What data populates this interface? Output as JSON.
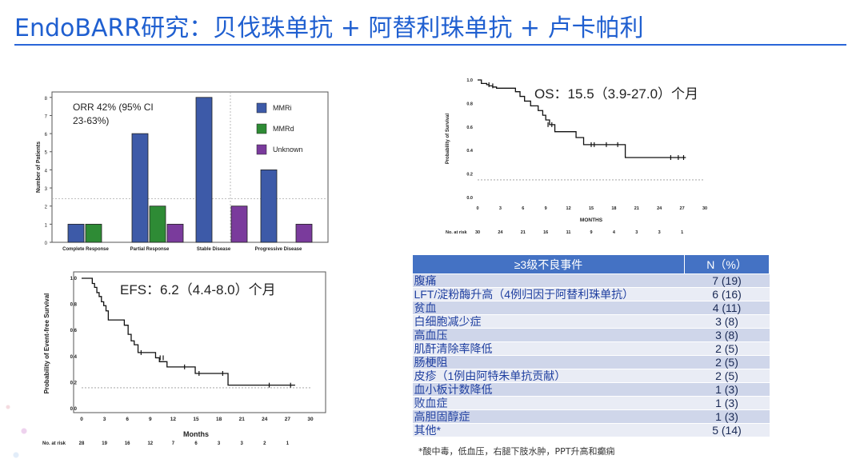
{
  "page": {
    "title": "EndoBARR研究：贝伐珠单抗 + 阿替利珠单抗 + 卢卡帕利",
    "footnote": "*酸中毒，低血压，右腿下肢水肿，PPT升高和癫痫"
  },
  "colors": {
    "title": "#1f5fd0",
    "mmri": "#3d5aa8",
    "mmrd": "#2e8b35",
    "unknown": "#7a3b9c",
    "table_header": "#4472c4"
  },
  "chart_data": [
    {
      "type": "bar",
      "categories": [
        "Complete Response",
        "Partial Response",
        "Stable Disease",
        "Progressive Disease"
      ],
      "series": [
        {
          "name": "MMRi",
          "values": [
            1,
            6,
            8,
            4
          ]
        },
        {
          "name": "MMRd",
          "values": [
            1,
            2,
            0,
            0
          ]
        },
        {
          "name": "Unknown",
          "values": [
            0,
            1,
            2,
            1
          ]
        }
      ],
      "ylabel": "Number of Patients",
      "yticks": [
        0,
        1,
        2,
        3,
        4,
        5,
        6,
        7,
        8
      ],
      "ylim": [
        0,
        8.3
      ],
      "annotation": "ORR 42% (95% CI 23-63%)",
      "annotation_lines": [
        "ORR 42% (95% CI",
        "23-63%)"
      ],
      "legend_position": "top-right",
      "reference_line_y": 2.4
    },
    {
      "type": "line",
      "subtype": "kaplan-meier",
      "annotation": "OS：15.5（3.9-27.0）个月",
      "xlabel": "MONTHS",
      "ylabel": "Probability of Survival",
      "xticks": [
        0,
        3,
        6,
        9,
        12,
        15,
        18,
        21,
        24,
        27,
        30
      ],
      "yticks": [
        "0.0",
        "0.2",
        "0.4",
        "0.6",
        "0.8",
        "1.0"
      ],
      "xlim": [
        0,
        30
      ],
      "ylim": [
        0,
        1
      ],
      "reference_line_y": 0.15,
      "at_risk_label": "No. at risk",
      "at_risk": [
        30,
        24,
        21,
        16,
        11,
        9,
        4,
        3,
        3,
        1
      ],
      "x": [
        0,
        0.5,
        1.2,
        1.5,
        2.0,
        2.5,
        3.5,
        5.0,
        5.6,
        6.2,
        7.0,
        8.0,
        8.6,
        9.0,
        9.5,
        10.2,
        13.0,
        14.0,
        16.0,
        19.5
      ],
      "y": [
        1.0,
        0.97,
        0.96,
        0.95,
        0.94,
        0.93,
        0.93,
        0.9,
        0.86,
        0.82,
        0.78,
        0.74,
        0.7,
        0.66,
        0.62,
        0.56,
        0.51,
        0.45,
        0.45,
        0.34
      ],
      "censored": [
        [
          1.5,
          0.96
        ],
        [
          2.0,
          0.95
        ],
        [
          9.3,
          0.62
        ],
        [
          9.8,
          0.62
        ],
        [
          15.0,
          0.45
        ],
        [
          15.4,
          0.45
        ],
        [
          17.0,
          0.45
        ],
        [
          18.5,
          0.45
        ],
        [
          25.5,
          0.34
        ],
        [
          26.5,
          0.34
        ],
        [
          27.2,
          0.34
        ]
      ],
      "x_end": 27.5
    },
    {
      "type": "line",
      "subtype": "kaplan-meier",
      "annotation": "EFS：6.2（4.4-8.0）个月",
      "xlabel": "Months",
      "ylabel": "Probability of Event-free Survival",
      "xticks": [
        0,
        3,
        6,
        9,
        12,
        15,
        18,
        21,
        24,
        27,
        30
      ],
      "yticks": [
        "0.0",
        "0.2",
        "0.4",
        "0.6",
        "0.8",
        "1.0"
      ],
      "xlim": [
        0,
        30
      ],
      "ylim": [
        0,
        1
      ],
      "reference_line_y": 0.16,
      "at_risk_label": "No. at risk",
      "at_risk": [
        28,
        19,
        16,
        12,
        7,
        6,
        3,
        3,
        2,
        1
      ],
      "x": [
        0,
        1.4,
        1.7,
        2.0,
        2.3,
        2.6,
        2.9,
        3.2,
        3.5,
        4.2,
        5.6,
        6.1,
        6.5,
        6.9,
        7.4,
        8.2,
        9.7,
        10.2,
        11.2,
        13.7,
        14.9,
        19.2
      ],
      "y": [
        1.0,
        0.96,
        0.93,
        0.89,
        0.86,
        0.82,
        0.79,
        0.75,
        0.68,
        0.68,
        0.64,
        0.57,
        0.52,
        0.49,
        0.43,
        0.43,
        0.39,
        0.36,
        0.32,
        0.32,
        0.27,
        0.18
      ],
      "censored": [
        [
          7.8,
          0.43
        ],
        [
          10.3,
          0.39
        ],
        [
          10.7,
          0.39
        ],
        [
          13.5,
          0.32
        ],
        [
          15.4,
          0.27
        ],
        [
          18.5,
          0.27
        ],
        [
          24.6,
          0.18
        ],
        [
          27.4,
          0.18
        ]
      ],
      "x_end": 28.0
    }
  ],
  "table": {
    "headers": [
      "≥3级不良事件",
      "N（%）"
    ],
    "rows": [
      {
        "event": "腹痛",
        "n": "7 (19)"
      },
      {
        "event": "LFT/淀粉酶升高（4例归因于阿替利珠单抗）",
        "n": "6 (16)"
      },
      {
        "event": "贫血",
        "n": "4 (11)"
      },
      {
        "event": "白细胞减少症",
        "n": "3 (8)"
      },
      {
        "event": "高血压",
        "n": "3 (8)"
      },
      {
        "event": "肌酐清除率降低",
        "n": "2 (5)"
      },
      {
        "event": "肠梗阻",
        "n": "2 (5)"
      },
      {
        "event": "皮疹（1例由阿特朱单抗贡献）",
        "n": "2 (5)"
      },
      {
        "event": "血小板计数降低",
        "n": "1 (3)"
      },
      {
        "event": "败血症",
        "n": "1 (3)"
      },
      {
        "event": "高胆固醇症",
        "n": "1 (3)"
      },
      {
        "event": "其他*",
        "n": "5 (14)"
      }
    ]
  }
}
